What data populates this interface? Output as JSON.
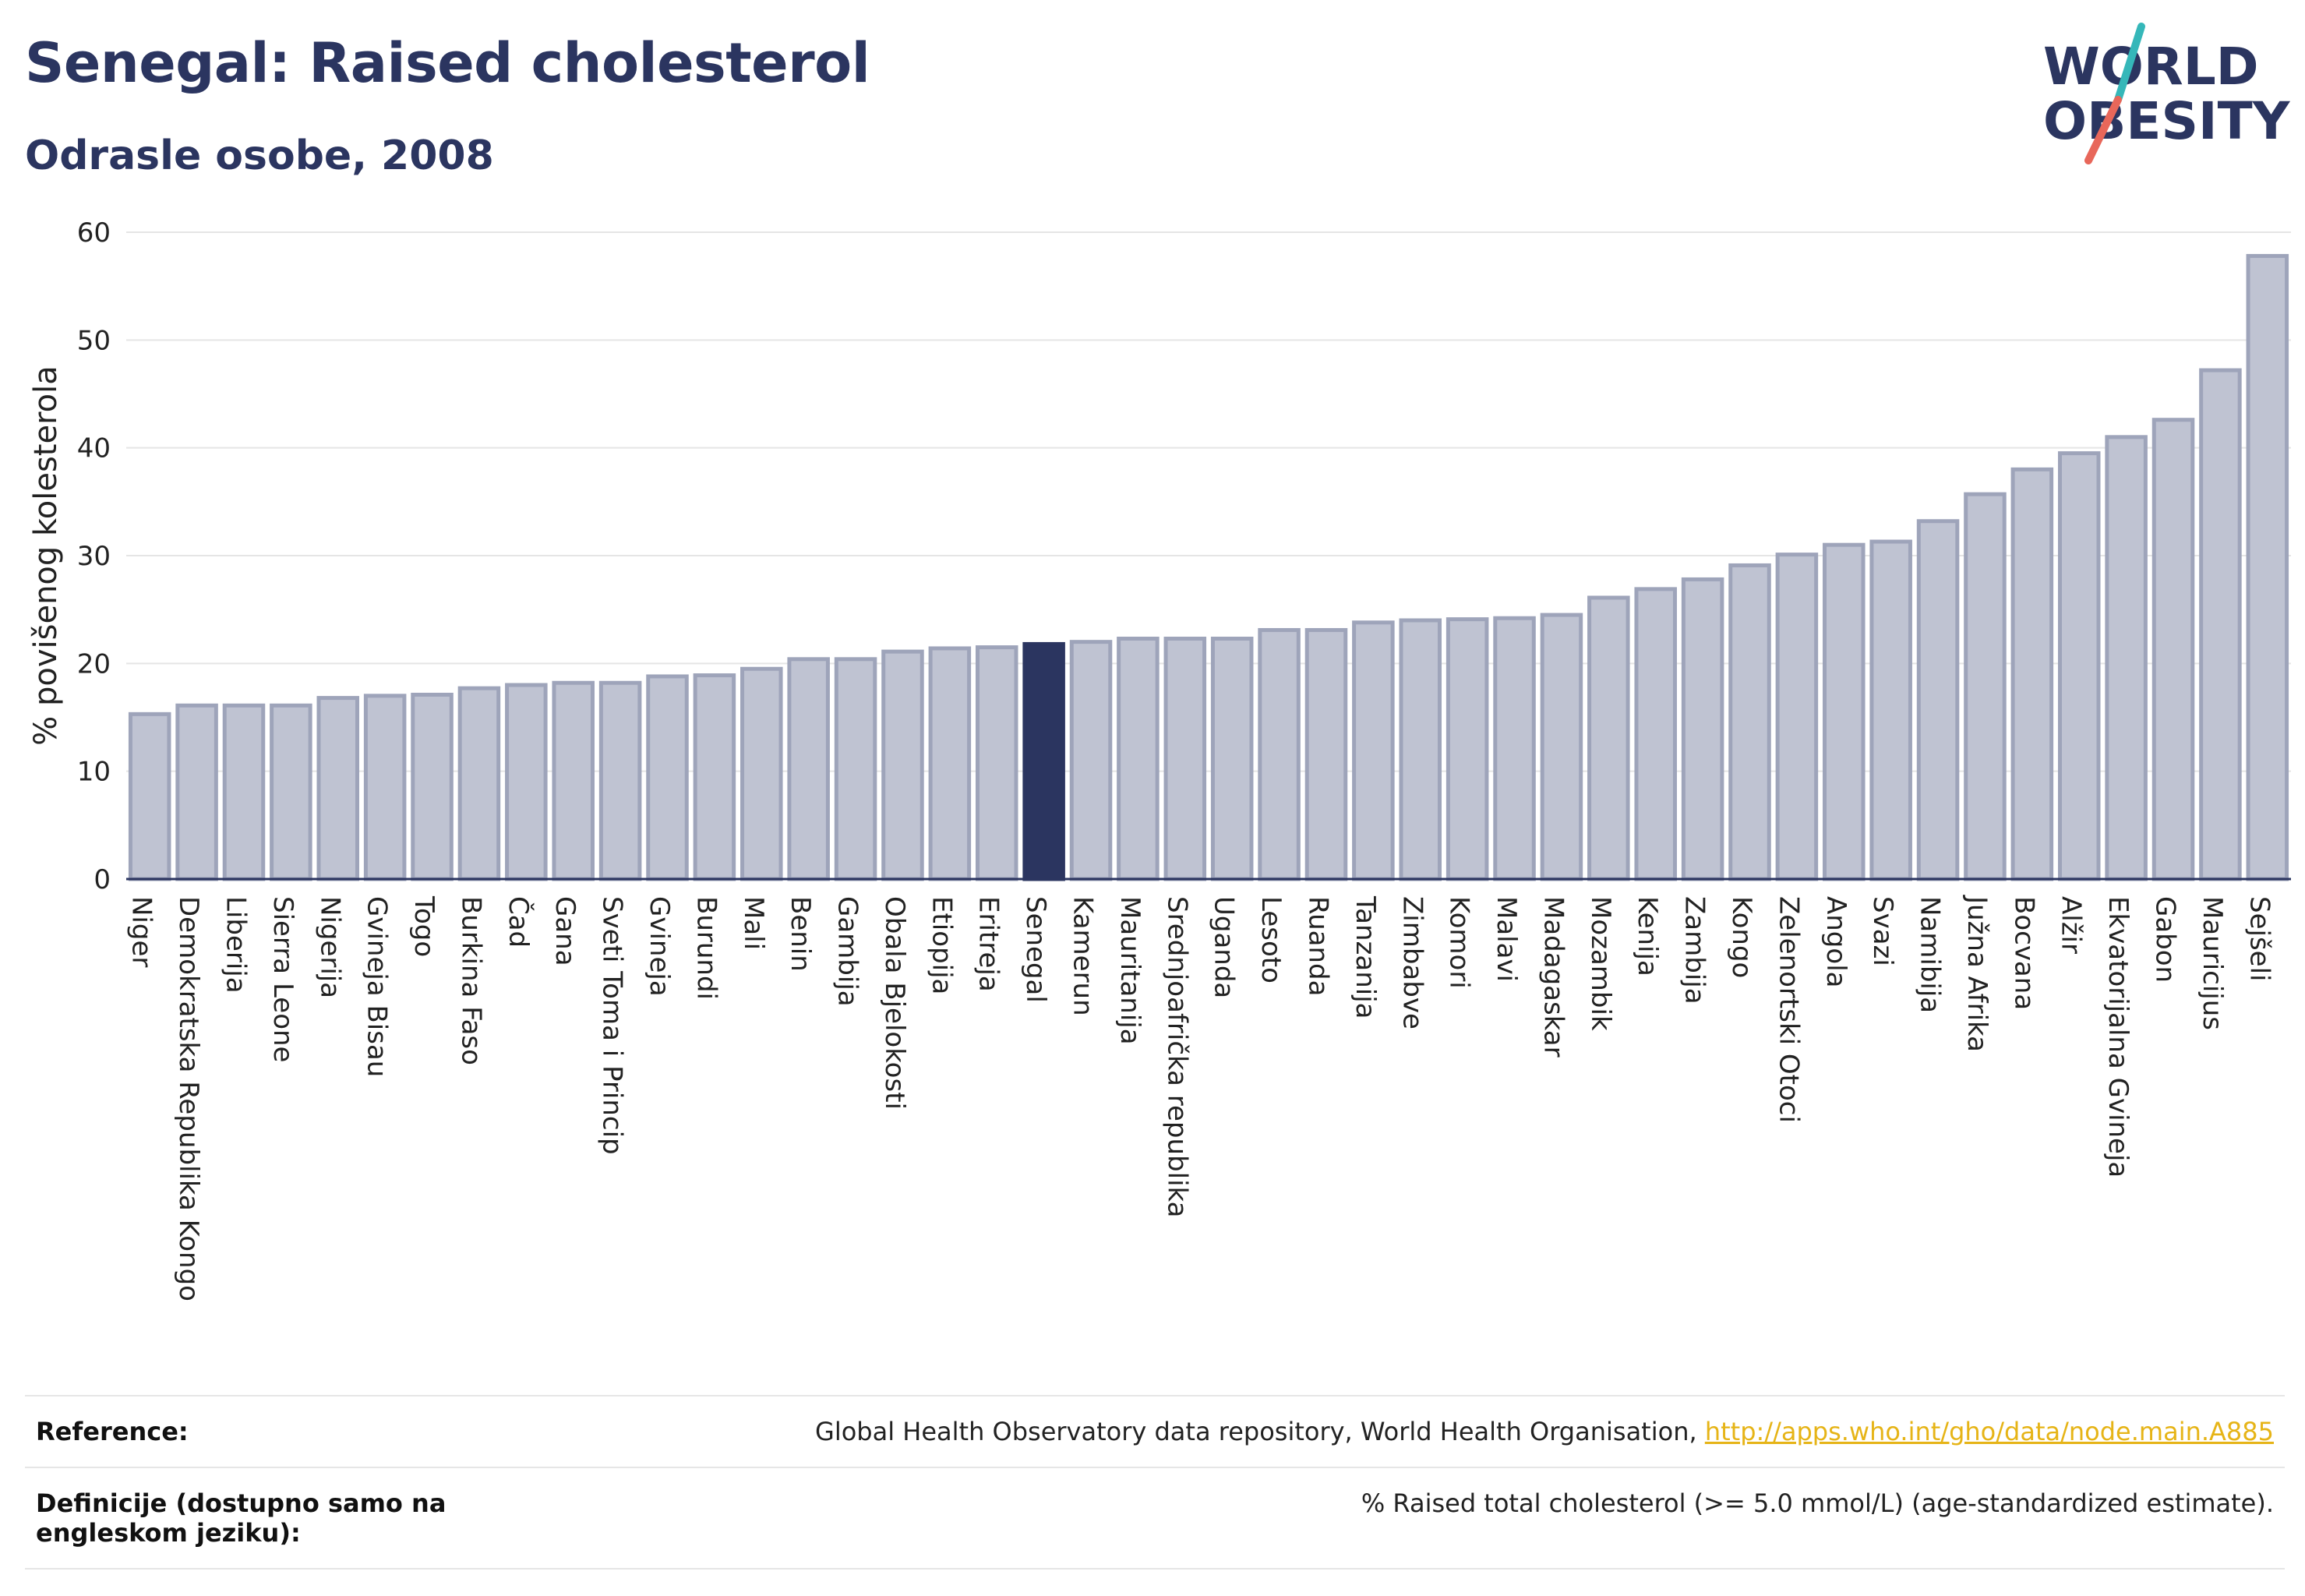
{
  "title": "Senegal: Raised cholesterol",
  "subtitle": "Odrasle osobe, 2008",
  "logo": {
    "line1": "WORLD",
    "line2": "OBESITY",
    "colors": {
      "text": "#2b3560",
      "slash_teal": "#35b7b9",
      "slash_coral": "#e8675a"
    }
  },
  "colors": {
    "bar": "#bfc3d2",
    "bar_stroke": "#9ea4ba",
    "highlight": "#2b3560",
    "grid": "#e5e5e5",
    "axis": "#2b3560"
  },
  "chart_data": {
    "type": "bar",
    "title": "Senegal: Raised cholesterol",
    "subtitle": "Odrasle osobe, 2008",
    "xlabel": "",
    "ylabel": "% povišenog kolesterola",
    "ylim": [
      0,
      60
    ],
    "yticks": [
      0,
      10,
      20,
      30,
      40,
      50,
      60
    ],
    "grid": true,
    "highlight": "Senegal",
    "categories": [
      "Niger",
      "Demokratska Republika Kongo",
      "Liberija",
      "Sierra Leone",
      "Nigerija",
      "Gvineja Bisau",
      "Togo",
      "Burkina Faso",
      "Čad",
      "Gana",
      "Sveti Toma i Princip",
      "Gvineja",
      "Burundi",
      "Mali",
      "Benin",
      "Gambija",
      "Obala Bjelokosti",
      "Etiopija",
      "Eritreja",
      "Senegal",
      "Kamerun",
      "Mauritanija",
      "Srednjoafrička republika",
      "Uganda",
      "Lesoto",
      "Ruanda",
      "Tanzanija",
      "Zimbabve",
      "Komori",
      "Malavi",
      "Madagaskar",
      "Mozambik",
      "Kenija",
      "Zambija",
      "Kongo",
      "Zelenortski Otoci",
      "Angola",
      "Svazi",
      "Namibija",
      "Južna Afrika",
      "Bocvana",
      "Alžir",
      "Ekvatorijalna Gvineja",
      "Gabon",
      "Mauricijus",
      "Sejšeli"
    ],
    "values": [
      15.3,
      16.1,
      16.1,
      16.1,
      16.8,
      17.0,
      17.1,
      17.7,
      18.0,
      18.2,
      18.2,
      18.8,
      18.9,
      19.5,
      20.4,
      20.4,
      21.1,
      21.4,
      21.5,
      21.8,
      22.0,
      22.3,
      22.3,
      22.3,
      23.1,
      23.1,
      23.8,
      24.0,
      24.1,
      24.2,
      24.5,
      26.1,
      26.9,
      27.8,
      29.1,
      30.1,
      31.0,
      31.3,
      33.2,
      35.7,
      38.0,
      39.5,
      41.0,
      42.6,
      47.2,
      57.8
    ]
  },
  "footer": {
    "reference_label": "Reference:",
    "reference_text": "Global Health Observatory data repository, World Health Organisation, ",
    "reference_link": "http://apps.who.int/gho/data/node.main.A885",
    "definition_label": "Definicije (dostupno samo na engleskom jeziku):",
    "definition_text": "% Raised total cholesterol (>= 5.0 mmol/L) (age-standardized estimate)."
  }
}
